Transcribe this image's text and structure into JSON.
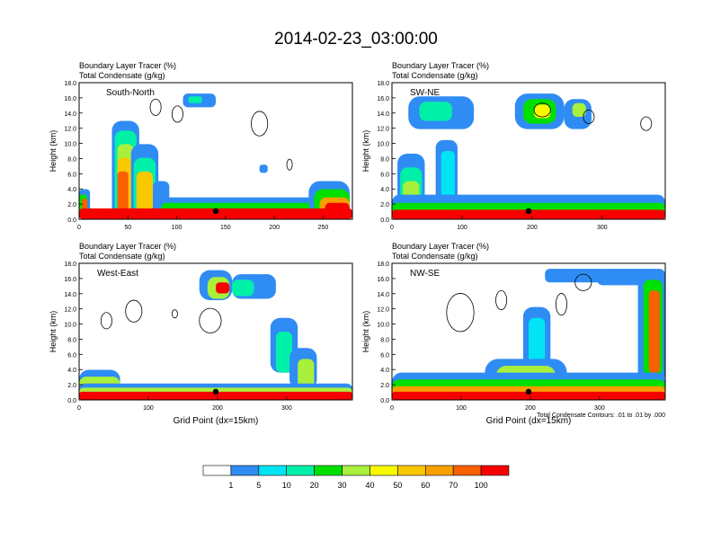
{
  "title": "2014-02-23_03:00:00",
  "panel_header": {
    "line1": "Boundary Layer Tracer",
    "line1_unit": "(%)",
    "line2": "Total Condensate",
    "line2_unit": "(g/kg)"
  },
  "ylabel": "Height (km)",
  "xlabel": "Grid Point (dx=15km)",
  "contour_note": "Total Condensate Contours: .01 to .01 by .000",
  "colorbar": {
    "colors": [
      "#ffffff",
      "#2f8cf4",
      "#00e4f4",
      "#00f0a8",
      "#00e000",
      "#a8f03c",
      "#f8f800",
      "#f8c800",
      "#f8a000",
      "#f86000",
      "#f80000"
    ],
    "labels": [
      "1",
      "5",
      "10",
      "20",
      "30",
      "40",
      "50",
      "60",
      "70",
      "100"
    ]
  },
  "chart_data": [
    {
      "type": "heatmap",
      "panel_label": "South-North",
      "xlim": [
        0,
        280
      ],
      "x_ticks": [
        "0",
        "50",
        "100",
        "150",
        "200",
        "250"
      ],
      "ylim": [
        0,
        18
      ],
      "y_ticks": [
        "0.0",
        "2.0",
        "4.0",
        "6.0",
        "8.0",
        "10.0",
        "12.0",
        "14.0",
        "16.0",
        "18.0"
      ]
    },
    {
      "type": "heatmap",
      "panel_label": "SW-NE",
      "xlim": [
        0,
        390
      ],
      "x_ticks": [
        "0",
        "100",
        "200",
        "300"
      ],
      "ylim": [
        0,
        18
      ],
      "y_ticks": [
        "0.0",
        "2.0",
        "4.0",
        "6.0",
        "8.0",
        "10.0",
        "12.0",
        "14.0",
        "16.0",
        "18.0"
      ]
    },
    {
      "type": "heatmap",
      "panel_label": "West-East",
      "xlim": [
        0,
        395
      ],
      "x_ticks": [
        "0",
        "100",
        "200",
        "300"
      ],
      "ylim": [
        0,
        18
      ],
      "y_ticks": [
        "0.0",
        "2.0",
        "4.0",
        "6.0",
        "8.0",
        "10.0",
        "12.0",
        "14.0",
        "16.0",
        "18.0"
      ]
    },
    {
      "type": "heatmap",
      "panel_label": "NW-SE",
      "xlim": [
        0,
        395
      ],
      "x_ticks": [
        "0",
        "100",
        "200",
        "300"
      ],
      "ylim": [
        0,
        18
      ],
      "y_ticks": [
        "0.0",
        "2.0",
        "4.0",
        "6.0",
        "8.0",
        "10.0",
        "12.0",
        "14.0",
        "16.0",
        "18.0"
      ]
    }
  ]
}
